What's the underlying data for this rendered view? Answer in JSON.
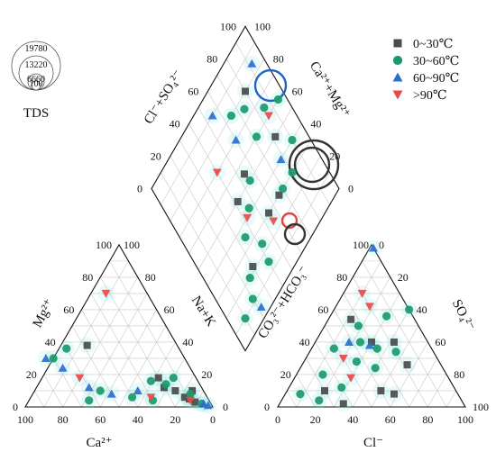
{
  "chart_data": {
    "type": "scatter",
    "subtype": "piper-trilinear",
    "legend": {
      "placement": "top-right",
      "entries": [
        {
          "label": "0~30℃",
          "marker": "square",
          "color": "#4a4a4a"
        },
        {
          "label": "30~60℃",
          "marker": "circle",
          "color": "#1a9a6a"
        },
        {
          "label": "60~90℃",
          "marker": "triangle-up",
          "color": "#2a6fd0"
        },
        {
          "label": ">90℃",
          "marker": "triangle-down",
          "color": "#e84a4a"
        }
      ]
    },
    "tds_legend": {
      "title": "TDS",
      "values": [
        "19780",
        "13220",
        "6660",
        "100"
      ]
    },
    "ticks": {
      "cation_bottom": [
        "100",
        "80",
        "60",
        "40",
        "20",
        "0"
      ],
      "cation_left": [
        "0",
        "20",
        "40",
        "60",
        "80",
        "100"
      ],
      "cation_right": [
        "100",
        "80",
        "60",
        "40",
        "20",
        "0"
      ],
      "anion_bottom": [
        "0",
        "20",
        "40",
        "60",
        "80",
        "100"
      ],
      "anion_left": [
        "100",
        "80",
        "60",
        "40",
        "20",
        "0"
      ],
      "anion_right": [
        "0",
        "20",
        "40",
        "60",
        "80",
        "100"
      ],
      "diamond_ul": [
        "0",
        "20",
        "40",
        "60",
        "80",
        "100"
      ],
      "diamond_ur": [
        "100",
        "80",
        "60",
        "40",
        "20",
        "0"
      ]
    },
    "axis_labels": {
      "cation_bottom": "Ca²⁺",
      "cation_left": "Mg²⁺",
      "cation_right": "Na+K",
      "anion_bottom": "Cl⁻",
      "anion_right": "SO₄²⁻",
      "anion_left": "CO₃²⁻+HCO₃⁻",
      "diamond_ul": "Cl⁻+SO₄²⁻",
      "diamond_ur": "Ca²⁺+Mg²⁺"
    },
    "cation_points": [
      {
        "series": "0~30℃",
        "ca": 15,
        "mg": 10
      },
      {
        "series": "0~30℃",
        "ca": 10,
        "mg": 5
      },
      {
        "series": "0~30℃",
        "ca": 8,
        "mg": 3
      },
      {
        "series": "0~30℃",
        "ca": 20,
        "mg": 12
      },
      {
        "series": "0~30℃",
        "ca": 48,
        "mg": 38
      },
      {
        "series": "0~30℃",
        "ca": 20,
        "mg": 18
      },
      {
        "series": "0~30℃",
        "ca": 12,
        "mg": 6
      },
      {
        "series": "0~30℃",
        "ca": 6,
        "mg": 10
      },
      {
        "series": "30~60℃",
        "ca": 60,
        "mg": 36
      },
      {
        "series": "30~60℃",
        "ca": 70,
        "mg": 30
      },
      {
        "series": "30~60℃",
        "ca": 55,
        "mg": 10
      },
      {
        "series": "30~60℃",
        "ca": 18,
        "mg": 14
      },
      {
        "series": "30~60℃",
        "ca": 25,
        "mg": 16
      },
      {
        "series": "30~60℃",
        "ca": 40,
        "mg": 6
      },
      {
        "series": "30~60℃",
        "ca": 12,
        "mg": 18
      },
      {
        "series": "30~60℃",
        "ca": 30,
        "mg": 4
      },
      {
        "series": "30~60℃",
        "ca": 5,
        "mg": 2
      },
      {
        "series": "30~60℃",
        "ca": 64,
        "mg": 4
      },
      {
        "series": "30~60℃",
        "ca": 8,
        "mg": 8
      },
      {
        "series": "60~90℃",
        "ca": 74,
        "mg": 30
      },
      {
        "series": "60~90℃",
        "ca": 68,
        "mg": 24
      },
      {
        "series": "60~90℃",
        "ca": 50,
        "mg": 8
      },
      {
        "series": "60~90℃",
        "ca": 35,
        "mg": 10
      },
      {
        "series": "60~90℃",
        "ca": 4,
        "mg": 2
      },
      {
        "series": "60~90℃",
        "ca": 60,
        "mg": 12
      },
      {
        "series": "60~90℃",
        "ca": 2,
        "mg": 1
      },
      {
        "series": ">90℃",
        "ca": 22,
        "mg": 70
      },
      {
        "series": ">90℃",
        "ca": 30,
        "mg": 6
      },
      {
        "series": ">90℃",
        "ca": 62,
        "mg": 18
      },
      {
        "series": ">90℃",
        "ca": 10,
        "mg": 4
      }
    ],
    "anion_points": [
      {
        "series": "0~30℃",
        "cl": 30,
        "so4": 40
      },
      {
        "series": "0~30℃",
        "cl": 12,
        "so4": 54
      },
      {
        "series": "0~30℃",
        "cl": 20,
        "so4": 10
      },
      {
        "series": "0~30℃",
        "cl": 34,
        "so4": 2
      },
      {
        "series": "0~30℃",
        "cl": 50,
        "so4": 10
      },
      {
        "series": "0~30℃",
        "cl": 56,
        "so4": 26
      },
      {
        "series": "0~30℃",
        "cl": 42,
        "so4": 40
      },
      {
        "series": "0~30℃",
        "cl": 58,
        "so4": 8
      },
      {
        "series": "30~60℃",
        "cl": 18,
        "so4": 50
      },
      {
        "series": "30~60℃",
        "cl": 40,
        "so4": 60
      },
      {
        "series": "30~60℃",
        "cl": 30,
        "so4": 56
      },
      {
        "series": "30~60℃",
        "cl": 12,
        "so4": 36
      },
      {
        "series": "30~60℃",
        "cl": 28,
        "so4": 28
      },
      {
        "series": "30~60℃",
        "cl": 40,
        "so4": 24
      },
      {
        "series": "30~60℃",
        "cl": 8,
        "so4": 8
      },
      {
        "series": "30~60℃",
        "cl": 20,
        "so4": 4
      },
      {
        "series": "30~60℃",
        "cl": 24,
        "so4": 40
      },
      {
        "series": "30~60℃",
        "cl": 14,
        "so4": 20
      },
      {
        "series": "30~60℃",
        "cl": 35,
        "so4": 36
      },
      {
        "series": "30~60℃",
        "cl": 28,
        "so4": 12
      },
      {
        "series": "30~60℃",
        "cl": 46,
        "so4": 34
      },
      {
        "series": "60~90℃",
        "cl": 18,
        "so4": 40
      },
      {
        "series": "60~90℃",
        "cl": 30,
        "so4": 38
      },
      {
        "series": "60~90℃",
        "cl": 2,
        "so4": 98
      },
      {
        "series": ">90℃",
        "cl": 10,
        "so4": 70
      },
      {
        "series": ">90℃",
        "cl": 18,
        "so4": 62
      },
      {
        "series": ">90℃",
        "cl": 30,
        "so4": 18
      },
      {
        "series": ">90℃",
        "cl": 20,
        "so4": 30
      }
    ],
    "diamond_points": [
      {
        "series": "0~30℃",
        "upper": 80,
        "right": 80
      },
      {
        "series": "0~30℃",
        "upper": 50,
        "right": 82
      },
      {
        "series": "0~30℃",
        "upper": 55,
        "right": 54
      },
      {
        "series": "0~30℃",
        "upper": 30,
        "right": 66
      },
      {
        "series": "0~30℃",
        "upper": 30,
        "right": 55
      },
      {
        "series": "0~30℃",
        "upper": 22,
        "right": 30
      },
      {
        "series": "0~30℃",
        "upper": 50,
        "right": 42
      },
      {
        "series": "30~60℃",
        "upper": 75,
        "right": 74
      },
      {
        "series": "30~60℃",
        "upper": 60,
        "right": 72
      },
      {
        "series": "30~60℃",
        "upper": 40,
        "right": 90
      },
      {
        "series": "30~60℃",
        "upper": 30,
        "right": 80
      },
      {
        "series": "30~60℃",
        "upper": 30,
        "right": 70
      },
      {
        "series": "30~60℃",
        "upper": 35,
        "right": 35
      },
      {
        "series": "30~60℃",
        "upper": 20,
        "right": 25
      },
      {
        "series": "30~60℃",
        "upper": 12,
        "right": 20
      },
      {
        "series": "30~60℃",
        "upper": 10,
        "right": 10
      },
      {
        "series": "30~60℃",
        "upper": 42,
        "right": 46
      },
      {
        "series": "30~60℃",
        "upper": 50,
        "right": 55
      },
      {
        "series": "30~60℃",
        "upper": 65,
        "right": 85
      },
      {
        "series": "30~60℃",
        "upper": 80,
        "right": 65
      },
      {
        "series": "30~60℃",
        "upper": 15,
        "right": 40
      },
      {
        "series": "30~60℃",
        "upper": 24,
        "right": 42
      },
      {
        "series": "30~60℃",
        "upper": 60,
        "right": 95
      },
      {
        "series": "60~90℃",
        "upper": 90,
        "right": 55
      },
      {
        "series": "60~90℃",
        "upper": 70,
        "right": 60
      },
      {
        "series": "60~90℃",
        "upper": 85,
        "right": 92
      },
      {
        "series": "60~90℃",
        "upper": 5,
        "right": 22
      },
      {
        "series": "60~90℃",
        "upper": 40,
        "right": 78
      },
      {
        "series": ">90℃",
        "upper": 60,
        "right": 85
      },
      {
        "series": ">90℃",
        "upper": 70,
        "right": 40
      },
      {
        "series": ">90℃",
        "upper": 40,
        "right": 42
      },
      {
        "series": ">90℃",
        "upper": 25,
        "right": 55
      }
    ]
  }
}
